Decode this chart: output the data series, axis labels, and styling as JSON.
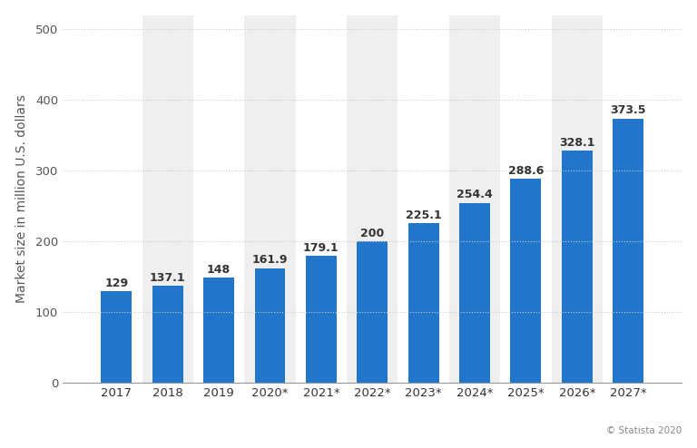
{
  "categories": [
    "2017",
    "2018",
    "2019",
    "2020*",
    "2021*",
    "2022*",
    "2023*",
    "2024*",
    "2025*",
    "2026*",
    "2027*"
  ],
  "values": [
    129,
    137.1,
    148,
    161.9,
    179.1,
    200,
    225.1,
    254.4,
    288.6,
    328.1,
    373.5
  ],
  "bar_color": "#2176cc",
  "ylabel": "Market size in million U.S. dollars",
  "yticks": [
    0,
    100,
    200,
    300,
    400,
    500
  ],
  "ylim": [
    0,
    520
  ],
  "background_color": "#ffffff",
  "plot_bg_color": "#ffffff",
  "band_color_light": "#efefef",
  "band_color_dark": "#e4e4e4",
  "grid_color": "#cccccc",
  "bar_label_fontsize": 9,
  "axis_label_fontsize": 10,
  "tick_fontsize": 9.5,
  "copyright_text": "© Statista 2020",
  "bar_width": 0.6
}
